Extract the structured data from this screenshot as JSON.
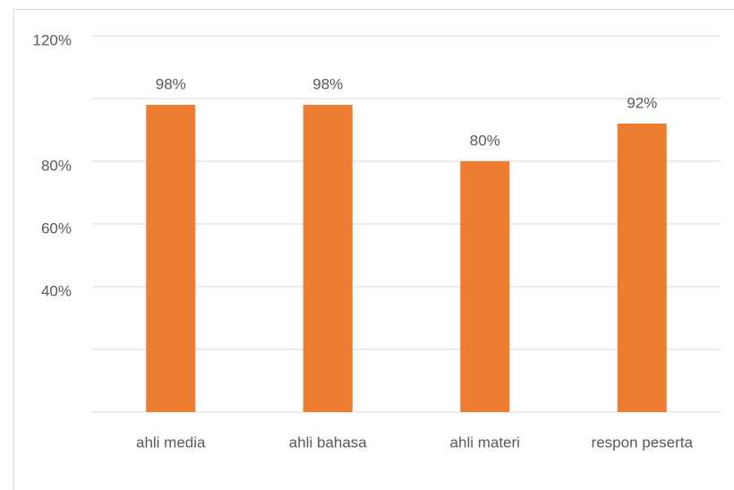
{
  "chart_data": {
    "type": "bar",
    "categories": [
      "ahli media",
      "ahli bahasa",
      "ahli materi",
      "respon peserta"
    ],
    "values": [
      98,
      98,
      80,
      92
    ],
    "value_labels": [
      "98%",
      "98%",
      "80%",
      "92%"
    ],
    "color": "#ed7d31",
    "ylim": [
      0,
      120
    ],
    "yticks": [
      {
        "value": 120,
        "label": "120%"
      },
      {
        "value": 80,
        "label": "80%"
      },
      {
        "value": 60,
        "label": "60%"
      },
      {
        "value": 40,
        "label": "40%"
      }
    ],
    "gridlines": [
      0,
      20,
      40,
      60,
      80,
      100,
      120
    ],
    "grid": true
  }
}
